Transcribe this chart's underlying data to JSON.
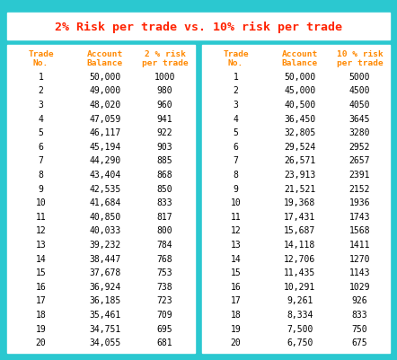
{
  "title": "2% Risk per trade vs. 10% risk per trade",
  "title_color": "#ff2200",
  "bg_color": "#2bc8d0",
  "header_color": "#ff8800",
  "data_color": "#000000",
  "left_headers": [
    "Trade\nNo.",
    "Account\nBalance",
    "2 % risk\nper trade"
  ],
  "right_headers": [
    "Trade\nNo.",
    "Account\nBalance",
    "10 % risk\nper trade"
  ],
  "left_trade_no": [
    "1",
    "2",
    "3",
    "4",
    "5",
    "6",
    "7",
    "8",
    "9",
    "10",
    "11",
    "12",
    "13",
    "14",
    "15",
    "16",
    "17",
    "18",
    "19",
    "20"
  ],
  "left_balance": [
    "50,000",
    "49,000",
    "48,020",
    "47,059",
    "46,117",
    "45,194",
    "44,290",
    "43,404",
    "42,535",
    "41,684",
    "40,850",
    "40,033",
    "39,232",
    "38,447",
    "37,678",
    "36,924",
    "36,185",
    "35,461",
    "34,751",
    "34,055"
  ],
  "left_risk": [
    "1000",
    "980",
    "960",
    "941",
    "922",
    "903",
    "885",
    "868",
    "850",
    "833",
    "817",
    "800",
    "784",
    "768",
    "753",
    "738",
    "723",
    "709",
    "695",
    "681"
  ],
  "right_trade_no": [
    "1",
    "2",
    "3",
    "4",
    "5",
    "6",
    "7",
    "8",
    "9",
    "10",
    "11",
    "12",
    "13",
    "14",
    "15",
    "16",
    "17",
    "18",
    "19",
    "20"
  ],
  "right_balance": [
    "50,000",
    "45,000",
    "40,500",
    "36,450",
    "32,805",
    "29,524",
    "26,571",
    "23,913",
    "21,521",
    "19,368",
    "17,431",
    "15,687",
    "14,118",
    "12,706",
    "11,435",
    "10,291",
    "9,261",
    "8,334",
    "7,500",
    "6,750"
  ],
  "right_risk": [
    "5000",
    "4500",
    "4050",
    "3645",
    "3280",
    "2952",
    "2657",
    "2391",
    "2152",
    "1936",
    "1743",
    "1568",
    "1411",
    "1270",
    "1143",
    "1029",
    "926",
    "833",
    "750",
    "675"
  ],
  "figw": 4.42,
  "figh": 4.02,
  "dpi": 100
}
